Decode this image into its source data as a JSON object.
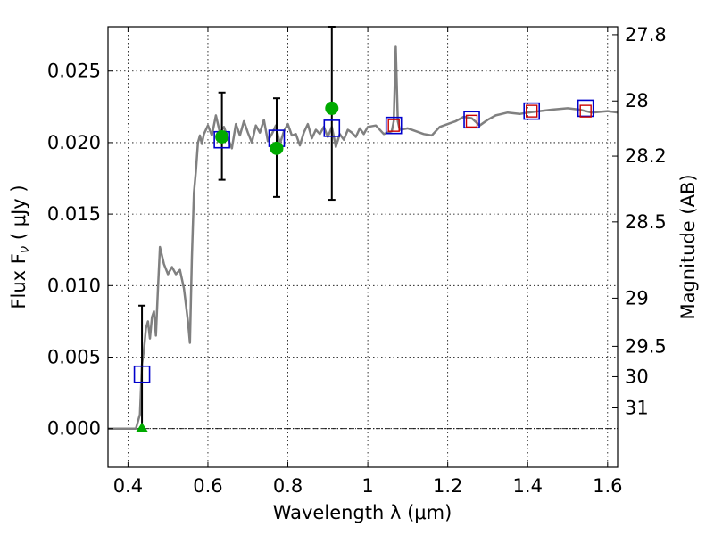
{
  "chart_data": {
    "type": "line",
    "xlabel": "Wavelength  λ (μm)",
    "ylabel": "Flux  F",
    "ylabel_sub": "ν",
    "ylabel_unit": " ( μJy )",
    "y2label": "Magnitude (AB)",
    "xlim": [
      0.35,
      1.625
    ],
    "ylim": [
      -0.0027,
      0.0281
    ],
    "grid": true,
    "x_ticks": [
      0.4,
      0.6,
      0.8,
      1.0,
      1.2,
      1.4,
      1.6
    ],
    "x_tick_labels": [
      "0.4",
      "0.6",
      "0.8",
      "1",
      "1.2",
      "1.4",
      "1.6"
    ],
    "y_ticks": [
      0.0,
      0.005,
      0.01,
      0.015,
      0.02,
      0.025
    ],
    "y_tick_labels": [
      "0.000",
      "0.005",
      "0.010",
      "0.015",
      "0.020",
      "0.025"
    ],
    "mag_ticks": [
      27.8,
      28,
      28.2,
      28.5,
      29,
      29.5,
      30,
      31
    ],
    "mag_tick_labels": [
      "27.8",
      "28",
      "28.2",
      "28.5",
      "29",
      "29.5",
      "30",
      "31"
    ],
    "colors": {
      "model": "#808080",
      "model_photometry": "#0000cc",
      "observed": "#00aa00",
      "hst_model": "#cc0000",
      "error_bar": "#000000",
      "zero_line": "#000000"
    },
    "series": [
      {
        "kind": "model_spectrum",
        "x": [
          0.35,
          0.42,
          0.43,
          0.435,
          0.44,
          0.445,
          0.45,
          0.455,
          0.46,
          0.465,
          0.47,
          0.475,
          0.48,
          0.49,
          0.5,
          0.51,
          0.52,
          0.53,
          0.54,
          0.55,
          0.555,
          0.56,
          0.565,
          0.57,
          0.575,
          0.58,
          0.585,
          0.59,
          0.6,
          0.61,
          0.62,
          0.63,
          0.64,
          0.65,
          0.66,
          0.67,
          0.68,
          0.69,
          0.7,
          0.71,
          0.72,
          0.73,
          0.74,
          0.75,
          0.76,
          0.77,
          0.78,
          0.79,
          0.8,
          0.81,
          0.82,
          0.83,
          0.84,
          0.85,
          0.86,
          0.87,
          0.88,
          0.89,
          0.9,
          0.91,
          0.92,
          0.93,
          0.94,
          0.95,
          0.96,
          0.97,
          0.98,
          0.99,
          1.0,
          1.02,
          1.04,
          1.06,
          1.065,
          1.07,
          1.075,
          1.08,
          1.1,
          1.12,
          1.14,
          1.16,
          1.18,
          1.2,
          1.22,
          1.24,
          1.26,
          1.28,
          1.3,
          1.32,
          1.35,
          1.38,
          1.4,
          1.43,
          1.46,
          1.5,
          1.53,
          1.56,
          1.6,
          1.625
        ],
        "y": [
          0.0,
          0.0,
          0.001,
          0.0045,
          0.0055,
          0.007,
          0.0075,
          0.0063,
          0.0078,
          0.0082,
          0.0065,
          0.0098,
          0.0127,
          0.0115,
          0.0108,
          0.0113,
          0.0108,
          0.0111,
          0.0098,
          0.0075,
          0.006,
          0.012,
          0.0165,
          0.018,
          0.02,
          0.0205,
          0.0199,
          0.0206,
          0.0212,
          0.0205,
          0.0219,
          0.0207,
          0.0211,
          0.0203,
          0.0196,
          0.0213,
          0.0205,
          0.0215,
          0.0207,
          0.02,
          0.0212,
          0.0207,
          0.0216,
          0.0201,
          0.0206,
          0.0212,
          0.0199,
          0.0208,
          0.0213,
          0.0205,
          0.0206,
          0.0198,
          0.0207,
          0.0213,
          0.0203,
          0.0209,
          0.0206,
          0.0211,
          0.0204,
          0.0211,
          0.0197,
          0.0206,
          0.0202,
          0.0209,
          0.0207,
          0.0204,
          0.021,
          0.0206,
          0.0211,
          0.0212,
          0.0206,
          0.0208,
          0.0215,
          0.0267,
          0.0215,
          0.0209,
          0.021,
          0.0208,
          0.0206,
          0.0205,
          0.0211,
          0.0213,
          0.0215,
          0.0218,
          0.0217,
          0.0212,
          0.0216,
          0.0219,
          0.0221,
          0.022,
          0.0221,
          0.0222,
          0.0223,
          0.0224,
          0.0223,
          0.0221,
          0.0222,
          0.0221
        ]
      },
      {
        "kind": "model_photometry",
        "x": [
          0.435,
          0.635,
          0.772,
          0.91,
          1.065,
          1.26,
          1.41,
          1.545
        ],
        "y": [
          0.0038,
          0.0202,
          0.0203,
          0.021,
          0.0212,
          0.0216,
          0.0222,
          0.0224
        ]
      },
      {
        "kind": "observed_photometry",
        "x": [
          0.635,
          0.772,
          0.91
        ],
        "y": [
          0.0204,
          0.0196,
          0.0224
        ],
        "err_low": [
          0.0174,
          0.0162,
          0.016
        ],
        "err_high": [
          0.0235,
          0.0231,
          0.0281
        ]
      },
      {
        "kind": "upper_limit",
        "x": [
          0.435
        ],
        "y": [
          0.0
        ],
        "err_low": [
          0.0
        ],
        "err_high": [
          0.0086
        ]
      },
      {
        "kind": "hst_model_photometry",
        "x": [
          1.065,
          1.26,
          1.41,
          1.545
        ],
        "y": [
          0.0212,
          0.0215,
          0.0222,
          0.0222
        ]
      }
    ]
  }
}
